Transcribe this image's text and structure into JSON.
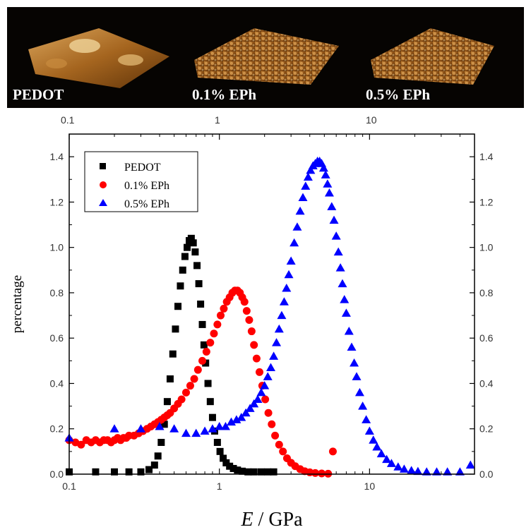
{
  "image_strip": {
    "panels": [
      {
        "label": "PEDOT"
      },
      {
        "label": "0.1% EPh"
      },
      {
        "label": "0.5% EPh"
      }
    ],
    "top_axis_tick_labels": [
      "0.1",
      "1",
      "10"
    ]
  },
  "chart_data": {
    "type": "scatter",
    "xscale": "log",
    "xlim": [
      0.1,
      50
    ],
    "ylim": [
      0,
      1.5
    ],
    "xlabel_italic": "E",
    "xlabel_rest": " / GPa",
    "ylabel": "percentage",
    "grid": false,
    "legend_position": "top-left",
    "x_tick_labels": [
      "0.1",
      "1",
      "10"
    ],
    "x_ticks": [
      0.1,
      1,
      10
    ],
    "y_tick_labels": [
      "0.0",
      "0.2",
      "0.4",
      "0.6",
      "0.8",
      "1.0",
      "1.2",
      "1.4"
    ],
    "y_ticks": [
      0,
      0.2,
      0.4,
      0.6,
      0.8,
      1.0,
      1.2,
      1.4
    ],
    "series": [
      {
        "name": "PEDOT",
        "marker": "square",
        "color": "#000000",
        "x": [
          0.1,
          0.15,
          0.2,
          0.25,
          0.3,
          0.34,
          0.37,
          0.39,
          0.41,
          0.43,
          0.45,
          0.47,
          0.49,
          0.51,
          0.53,
          0.55,
          0.57,
          0.59,
          0.61,
          0.63,
          0.65,
          0.67,
          0.69,
          0.71,
          0.73,
          0.75,
          0.77,
          0.79,
          0.81,
          0.84,
          0.87,
          0.9,
          0.93,
          0.97,
          1.01,
          1.06,
          1.11,
          1.17,
          1.24,
          1.32,
          1.42,
          1.55,
          1.7,
          1.9,
          2.1,
          2.3
        ],
        "y": [
          0.01,
          0.01,
          0.01,
          0.01,
          0.01,
          0.02,
          0.04,
          0.08,
          0.14,
          0.22,
          0.32,
          0.42,
          0.53,
          0.64,
          0.74,
          0.83,
          0.9,
          0.96,
          1.0,
          1.03,
          1.04,
          1.02,
          0.98,
          0.92,
          0.84,
          0.75,
          0.66,
          0.57,
          0.49,
          0.4,
          0.32,
          0.25,
          0.19,
          0.14,
          0.1,
          0.07,
          0.05,
          0.035,
          0.025,
          0.018,
          0.013,
          0.01,
          0.01,
          0.01,
          0.01,
          0.01
        ]
      },
      {
        "name": "0.1% EPh",
        "marker": "circle",
        "color": "#ff0000",
        "x": [
          0.1,
          0.11,
          0.12,
          0.13,
          0.14,
          0.15,
          0.16,
          0.17,
          0.18,
          0.19,
          0.2,
          0.21,
          0.22,
          0.23,
          0.24,
          0.25,
          0.27,
          0.29,
          0.31,
          0.33,
          0.35,
          0.37,
          0.39,
          0.41,
          0.43,
          0.45,
          0.47,
          0.5,
          0.53,
          0.56,
          0.6,
          0.64,
          0.68,
          0.72,
          0.77,
          0.82,
          0.87,
          0.92,
          0.97,
          1.02,
          1.07,
          1.12,
          1.17,
          1.22,
          1.27,
          1.32,
          1.37,
          1.42,
          1.47,
          1.52,
          1.58,
          1.64,
          1.7,
          1.77,
          1.85,
          1.93,
          2.02,
          2.12,
          2.23,
          2.35,
          2.5,
          2.65,
          2.82,
          3.0,
          3.2,
          3.45,
          3.7,
          4.0,
          4.35,
          4.8,
          5.3,
          5.7
        ],
        "y": [
          0.15,
          0.14,
          0.13,
          0.15,
          0.14,
          0.15,
          0.14,
          0.15,
          0.15,
          0.14,
          0.15,
          0.16,
          0.15,
          0.16,
          0.16,
          0.17,
          0.17,
          0.18,
          0.19,
          0.2,
          0.21,
          0.22,
          0.23,
          0.24,
          0.25,
          0.26,
          0.27,
          0.29,
          0.31,
          0.33,
          0.36,
          0.39,
          0.42,
          0.46,
          0.5,
          0.54,
          0.58,
          0.62,
          0.66,
          0.7,
          0.73,
          0.76,
          0.78,
          0.8,
          0.81,
          0.81,
          0.8,
          0.78,
          0.76,
          0.72,
          0.68,
          0.63,
          0.57,
          0.51,
          0.45,
          0.39,
          0.33,
          0.27,
          0.22,
          0.17,
          0.13,
          0.1,
          0.07,
          0.05,
          0.035,
          0.022,
          0.013,
          0.008,
          0.005,
          0.003,
          0.002,
          0.1
        ]
      },
      {
        "name": "0.5% EPh",
        "marker": "triangle",
        "color": "#0000ff",
        "x": [
          0.1,
          0.2,
          0.3,
          0.4,
          0.5,
          0.6,
          0.7,
          0.8,
          0.9,
          1.0,
          1.1,
          1.2,
          1.3,
          1.4,
          1.5,
          1.6,
          1.7,
          1.8,
          1.9,
          2.0,
          2.1,
          2.2,
          2.3,
          2.4,
          2.5,
          2.6,
          2.7,
          2.8,
          2.9,
          3.0,
          3.15,
          3.3,
          3.45,
          3.6,
          3.75,
          3.9,
          4.05,
          4.2,
          4.35,
          4.5,
          4.65,
          4.8,
          4.95,
          5.1,
          5.25,
          5.4,
          5.6,
          5.8,
          6.0,
          6.2,
          6.4,
          6.6,
          6.8,
          7.0,
          7.3,
          7.6,
          7.9,
          8.2,
          8.6,
          9.0,
          9.5,
          10.0,
          10.6,
          11.2,
          12.0,
          13.0,
          14.0,
          15.5,
          17.0,
          19.0,
          21.0,
          24.0,
          28.0,
          33.0,
          40.0,
          47.0
        ],
        "y": [
          0.16,
          0.2,
          0.2,
          0.21,
          0.2,
          0.18,
          0.18,
          0.19,
          0.2,
          0.21,
          0.21,
          0.23,
          0.24,
          0.25,
          0.27,
          0.29,
          0.31,
          0.33,
          0.36,
          0.39,
          0.43,
          0.47,
          0.52,
          0.58,
          0.64,
          0.7,
          0.76,
          0.82,
          0.88,
          0.94,
          1.02,
          1.09,
          1.16,
          1.22,
          1.27,
          1.31,
          1.34,
          1.36,
          1.37,
          1.38,
          1.38,
          1.37,
          1.35,
          1.32,
          1.28,
          1.24,
          1.18,
          1.12,
          1.05,
          0.98,
          0.91,
          0.84,
          0.77,
          0.71,
          0.63,
          0.56,
          0.49,
          0.43,
          0.36,
          0.3,
          0.24,
          0.19,
          0.15,
          0.12,
          0.09,
          0.065,
          0.047,
          0.032,
          0.022,
          0.016,
          0.012,
          0.01,
          0.01,
          0.01,
          0.01,
          0.04
        ]
      }
    ]
  }
}
